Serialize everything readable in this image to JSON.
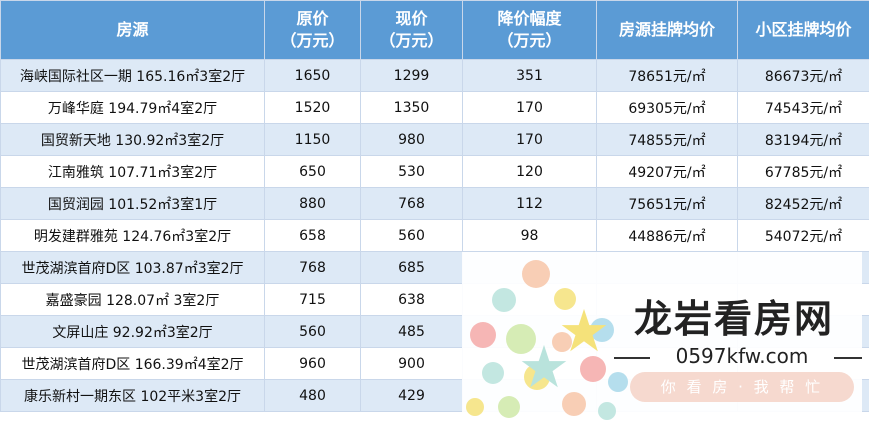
{
  "table": {
    "headers": [
      {
        "line1": "房源",
        "line2": ""
      },
      {
        "line1": "原价",
        "line2": "（万元）"
      },
      {
        "line1": "现价",
        "line2": "（万元）"
      },
      {
        "line1": "降价幅度",
        "line2": "（万元）"
      },
      {
        "line1": "房源挂牌均价",
        "line2": ""
      },
      {
        "line1": "小区挂牌均价",
        "line2": ""
      }
    ],
    "rows": [
      [
        "海峡国际社区一期 165.16㎡3室2厅",
        "1650",
        "1299",
        "351",
        "78651元/㎡",
        "86673元/㎡"
      ],
      [
        "万峰华庭 194.79㎡4室2厅",
        "1520",
        "1350",
        "170",
        "69305元/㎡",
        "74543元/㎡"
      ],
      [
        "国贸新天地 130.92㎡3室2厅",
        "1150",
        "980",
        "170",
        "74855元/㎡",
        "83194元/㎡"
      ],
      [
        "江南雅筑 107.71㎡3室2厅",
        "650",
        "530",
        "120",
        "49207元/㎡",
        "67785元/㎡"
      ],
      [
        "国贸润园 101.52㎡3室1厅",
        "880",
        "768",
        "112",
        "75651元/㎡",
        "82452元/㎡"
      ],
      [
        "明发建群雅苑 124.76㎡3室2厅",
        "658",
        "560",
        "98",
        "44886元/㎡",
        "54072元/㎡"
      ],
      [
        "世茂湖滨首府D区 103.87㎡3室2厅",
        "768",
        "685",
        "",
        "",
        ""
      ],
      [
        "嘉盛豪园 128.07㎡ 3室2厅",
        "715",
        "638",
        "",
        "",
        ""
      ],
      [
        "文屏山庄 92.92㎡3室2厅",
        "560",
        "485",
        "",
        "",
        ""
      ],
      [
        "世茂湖滨首府D区 166.39㎡4室2厅",
        "960",
        "900",
        "",
        "",
        ""
      ],
      [
        "康乐新村一期东区 102平米3室2厅",
        "480",
        "429",
        "",
        "",
        ""
      ]
    ]
  },
  "watermark": {
    "title": "龙岩看房网",
    "url": "0597kfw.com",
    "slogan": "你 看 房 · 我 帮 忙",
    "colors": [
      "#f7c6a8",
      "#b9e3dc",
      "#f5e27a",
      "#f4a9a8",
      "#a8d8ea",
      "#cfe9a8"
    ]
  }
}
